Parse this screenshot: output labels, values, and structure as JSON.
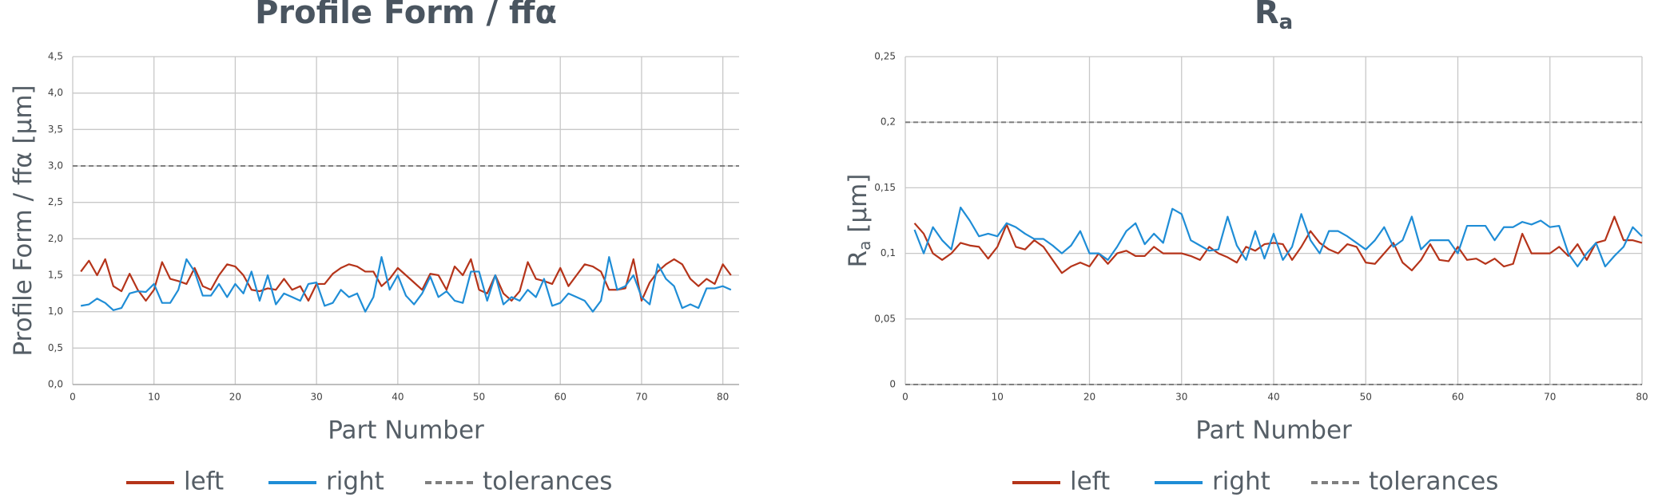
{
  "chart_data": [
    {
      "type": "line",
      "title": "Profile Form / ffα",
      "x_label": "Part Number",
      "y_label": "Profile Form / ffα [µm]",
      "x": [
        1,
        2,
        3,
        4,
        5,
        6,
        7,
        8,
        9,
        10,
        11,
        12,
        13,
        14,
        15,
        16,
        17,
        18,
        19,
        20,
        21,
        22,
        23,
        24,
        25,
        26,
        27,
        28,
        29,
        30,
        31,
        32,
        33,
        34,
        35,
        36,
        37,
        38,
        39,
        40,
        41,
        42,
        43,
        44,
        45,
        46,
        47,
        48,
        49,
        50,
        51,
        52,
        53,
        54,
        55,
        56,
        57,
        58,
        59,
        60,
        61,
        62,
        63,
        64,
        65,
        66,
        67,
        68,
        69,
        70,
        71,
        72,
        73,
        74,
        75,
        76,
        77,
        78,
        79,
        80,
        81
      ],
      "series": [
        {
          "name": "left",
          "color": "#b5341a",
          "values": [
            1.55,
            1.7,
            1.5,
            1.72,
            1.35,
            1.28,
            1.52,
            1.3,
            1.15,
            1.3,
            1.68,
            1.45,
            1.42,
            1.38,
            1.6,
            1.35,
            1.3,
            1.5,
            1.65,
            1.62,
            1.5,
            1.3,
            1.28,
            1.32,
            1.3,
            1.45,
            1.3,
            1.35,
            1.15,
            1.38,
            1.38,
            1.52,
            1.6,
            1.65,
            1.62,
            1.55,
            1.55,
            1.35,
            1.45,
            1.6,
            1.5,
            1.4,
            1.3,
            1.52,
            1.5,
            1.3,
            1.62,
            1.5,
            1.72,
            1.3,
            1.25,
            1.5,
            1.25,
            1.15,
            1.28,
            1.68,
            1.45,
            1.42,
            1.38,
            1.6,
            1.35,
            1.5,
            1.65,
            1.62,
            1.55,
            1.3,
            1.3,
            1.32,
            1.72,
            1.15,
            1.4,
            1.55,
            1.65,
            1.72,
            1.65,
            1.45,
            1.35,
            1.45,
            1.38,
            1.65,
            1.5
          ]
        },
        {
          "name": "right",
          "color": "#1f8dd6",
          "values": [
            1.08,
            1.1,
            1.18,
            1.12,
            1.02,
            1.05,
            1.25,
            1.28,
            1.27,
            1.38,
            1.12,
            1.12,
            1.3,
            1.72,
            1.55,
            1.22,
            1.22,
            1.38,
            1.2,
            1.38,
            1.25,
            1.55,
            1.15,
            1.5,
            1.1,
            1.25,
            1.2,
            1.15,
            1.38,
            1.4,
            1.08,
            1.12,
            1.3,
            1.2,
            1.25,
            1.0,
            1.2,
            1.75,
            1.3,
            1.5,
            1.22,
            1.1,
            1.25,
            1.48,
            1.2,
            1.28,
            1.15,
            1.12,
            1.55,
            1.55,
            1.15,
            1.5,
            1.1,
            1.2,
            1.15,
            1.3,
            1.2,
            1.45,
            1.08,
            1.12,
            1.25,
            1.2,
            1.15,
            1.0,
            1.15,
            1.75,
            1.3,
            1.35,
            1.5,
            1.2,
            1.1,
            1.65,
            1.45,
            1.35,
            1.05,
            1.1,
            1.05,
            1.32,
            1.32,
            1.35,
            1.3
          ]
        }
      ],
      "tolerance": {
        "name": "tolerances",
        "color": "#7f7f7f",
        "values": [
          3
        ]
      },
      "xlim": [
        0,
        82
      ],
      "xticks": [
        0,
        10,
        20,
        30,
        40,
        50,
        60,
        70,
        80
      ],
      "ylim": [
        0,
        4.5
      ],
      "yticks": [
        {
          "value": 0,
          "label": "0,0"
        },
        {
          "value": 0.5,
          "label": "0,5"
        },
        {
          "value": 1,
          "label": "1,0"
        },
        {
          "value": 1.5,
          "label": "1,5"
        },
        {
          "value": 2,
          "label": "2,0"
        },
        {
          "value": 2.5,
          "label": "2,5"
        },
        {
          "value": 3,
          "label": "3,0"
        },
        {
          "value": 3.5,
          "label": "3,5"
        },
        {
          "value": 4,
          "label": "4,0"
        },
        {
          "value": 4.5,
          "label": "4,5"
        }
      ],
      "grid": true
    },
    {
      "type": "line",
      "title": "R",
      "title_subscript": "a",
      "x_label": "Part Number",
      "y_label": "R",
      "y_label_subscript": "a",
      "y_label_suffix": " [µm]",
      "x": [
        1,
        2,
        3,
        4,
        5,
        6,
        7,
        8,
        9,
        10,
        11,
        12,
        13,
        14,
        15,
        16,
        17,
        18,
        19,
        20,
        21,
        22,
        23,
        24,
        25,
        26,
        27,
        28,
        29,
        30,
        31,
        32,
        33,
        34,
        35,
        36,
        37,
        38,
        39,
        40,
        41,
        42,
        43,
        44,
        45,
        46,
        47,
        48,
        49,
        50,
        51,
        52,
        53,
        54,
        55,
        56,
        57,
        58,
        59,
        60,
        61,
        62,
        63,
        64,
        65,
        66,
        67,
        68,
        69,
        70,
        71,
        72,
        73,
        74,
        75,
        76,
        77,
        78,
        79,
        80
      ],
      "series": [
        {
          "name": "left",
          "color": "#b5341a",
          "values": [
            0.123,
            0.115,
            0.1,
            0.095,
            0.1,
            0.108,
            0.106,
            0.105,
            0.096,
            0.105,
            0.122,
            0.105,
            0.103,
            0.11,
            0.105,
            0.095,
            0.085,
            0.09,
            0.093,
            0.09,
            0.1,
            0.092,
            0.1,
            0.102,
            0.098,
            0.098,
            0.105,
            0.1,
            0.1,
            0.1,
            0.098,
            0.095,
            0.105,
            0.1,
            0.097,
            0.093,
            0.105,
            0.102,
            0.107,
            0.108,
            0.107,
            0.095,
            0.105,
            0.117,
            0.108,
            0.103,
            0.1,
            0.107,
            0.105,
            0.093,
            0.092,
            0.1,
            0.108,
            0.093,
            0.087,
            0.095,
            0.107,
            0.095,
            0.094,
            0.105,
            0.095,
            0.096,
            0.092,
            0.096,
            0.09,
            0.092,
            0.115,
            0.1,
            0.1,
            0.1,
            0.105,
            0.098,
            0.107,
            0.095,
            0.108,
            0.11,
            0.128,
            0.11,
            0.11,
            0.108
          ]
        },
        {
          "name": "right",
          "color": "#1f8dd6",
          "values": [
            0.118,
            0.1,
            0.12,
            0.11,
            0.103,
            0.135,
            0.125,
            0.113,
            0.115,
            0.113,
            0.123,
            0.12,
            0.115,
            0.111,
            0.111,
            0.106,
            0.1,
            0.106,
            0.117,
            0.1,
            0.1,
            0.095,
            0.105,
            0.117,
            0.123,
            0.107,
            0.115,
            0.108,
            0.134,
            0.13,
            0.11,
            0.106,
            0.102,
            0.103,
            0.128,
            0.106,
            0.095,
            0.117,
            0.096,
            0.115,
            0.095,
            0.105,
            0.13,
            0.11,
            0.1,
            0.117,
            0.117,
            0.113,
            0.108,
            0.103,
            0.11,
            0.12,
            0.105,
            0.11,
            0.128,
            0.103,
            0.11,
            0.11,
            0.11,
            0.1,
            0.121,
            0.121,
            0.121,
            0.11,
            0.12,
            0.12,
            0.124,
            0.122,
            0.125,
            0.12,
            0.121,
            0.1,
            0.09,
            0.1,
            0.108,
            0.09,
            0.098,
            0.105,
            0.12,
            0.113
          ]
        }
      ],
      "tolerance": {
        "name": "tolerances",
        "color": "#7f7f7f",
        "values": [
          0.2,
          0
        ]
      },
      "xlim": [
        0,
        80
      ],
      "xticks": [
        0,
        10,
        20,
        30,
        40,
        50,
        60,
        70,
        80
      ],
      "ylim": [
        0,
        0.25
      ],
      "yticks": [
        0,
        {
          "value": 0.05,
          "label": "0,05"
        },
        {
          "value": 0.1,
          "label": "0,1"
        },
        {
          "value": 0.15,
          "label": "0,15"
        },
        {
          "value": 0.2,
          "label": "0,2"
        },
        {
          "value": 0.25,
          "label": "0,25"
        }
      ],
      "grid": true
    }
  ]
}
